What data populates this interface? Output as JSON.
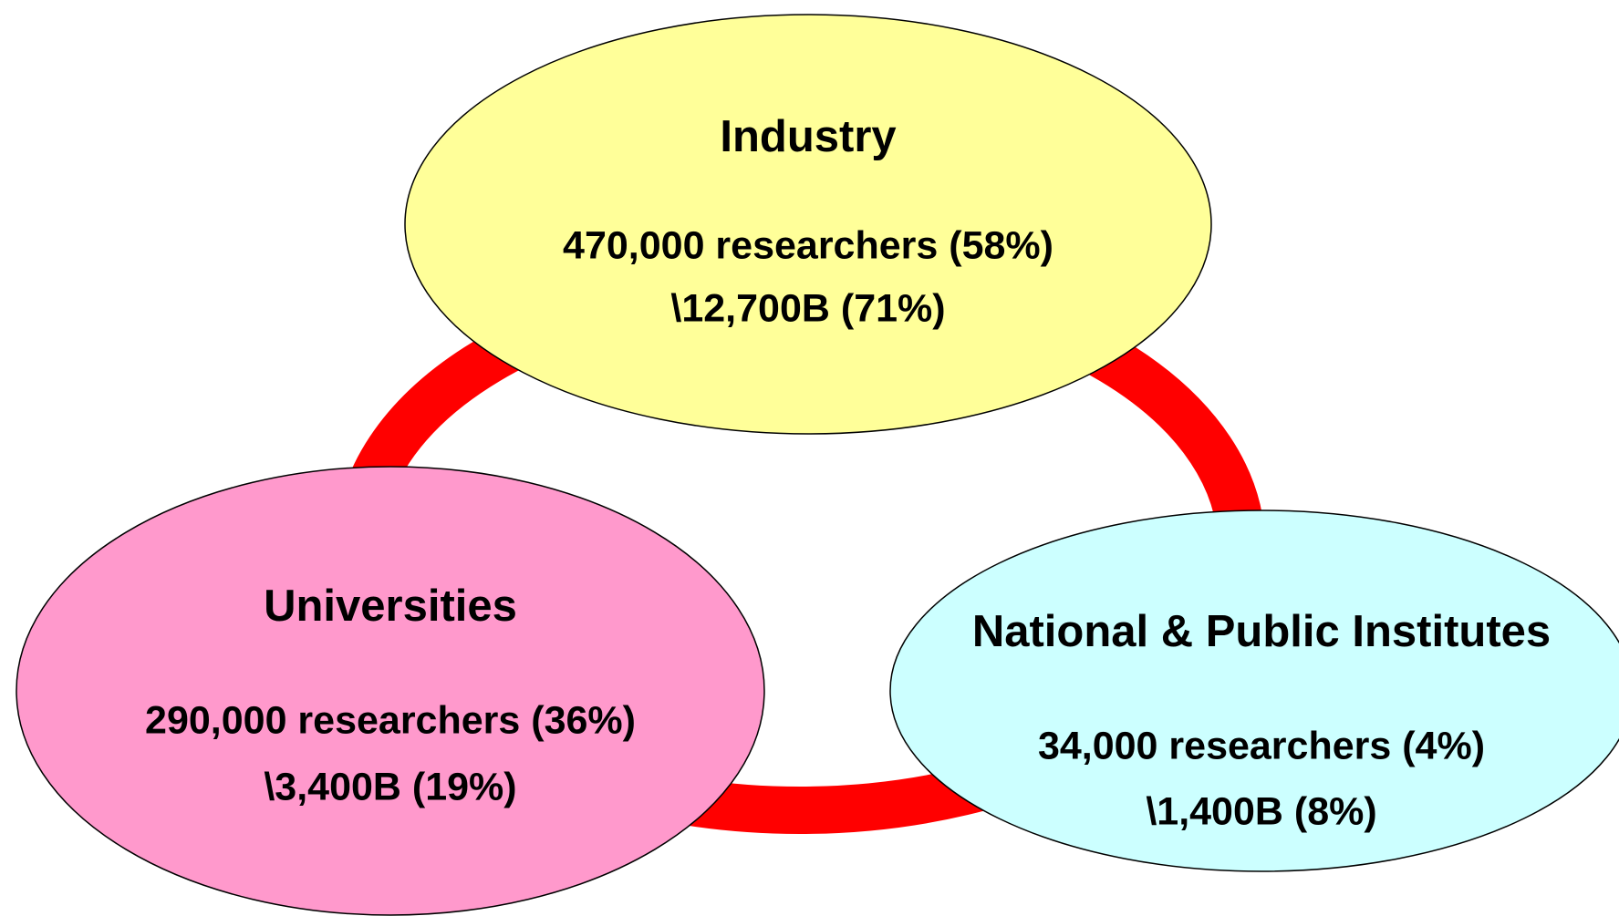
{
  "nodes": [
    {
      "label": "Industry",
      "lines": [
        "470,000 researchers (58%)",
        "\\12,700B (71%)"
      ]
    },
    {
      "label": "Universities",
      "lines": [
        "290,000 researchers (36%)",
        "\\3,400B (19%)"
      ]
    },
    {
      "label": "National & Public Institutes",
      "lines": [
        "34,000 researchers (4%)",
        "\\1,400B (8%)"
      ]
    }
  ]
}
